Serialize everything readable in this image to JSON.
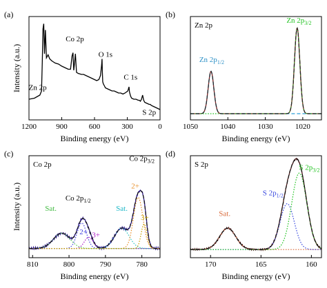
{
  "chart_data": [
    {
      "type": "line",
      "panel_label": "(a)",
      "xlabel": "Binding energy (eV)",
      "ylabel": "Intensity (a.u.)",
      "xlim": [
        1200,
        0
      ],
      "xticks": [
        1200,
        900,
        600,
        300,
        0
      ],
      "ylim": [
        0,
        10
      ],
      "series": [
        {
          "color": "#000000",
          "style": "solid",
          "x": [
            1200,
            1150,
            1100,
            1085,
            1078,
            1072,
            1065,
            1058,
            1050,
            1040,
            1025,
            1010,
            990,
            960,
            930,
            900,
            880,
            860,
            840,
            820,
            805,
            797,
            790,
            782,
            775,
            765,
            750,
            720,
            700,
            680,
            660,
            640,
            620,
            600,
            580,
            560,
            545,
            535,
            531,
            528,
            525,
            520,
            510,
            500,
            480,
            460,
            440,
            420,
            400,
            380,
            360,
            340,
            320,
            295,
            284,
            280,
            270,
            260,
            240,
            220,
            200,
            190,
            180,
            170,
            160,
            150,
            140,
            120,
            100,
            90,
            80,
            60,
            40,
            20,
            0
          ],
          "y": [
            2.0,
            2.1,
            2.4,
            2.8,
            5.6,
            8.8,
            9.3,
            6.4,
            8.7,
            6.0,
            6.3,
            5.9,
            5.7,
            5.5,
            5.4,
            5.2,
            5.1,
            5.0,
            4.9,
            4.9,
            6.2,
            6.5,
            4.8,
            5.6,
            6.4,
            4.6,
            4.5,
            4.4,
            4.4,
            4.3,
            4.2,
            4.1,
            4.0,
            3.9,
            3.8,
            3.9,
            4.3,
            5.3,
            5.9,
            4.6,
            3.7,
            3.5,
            3.3,
            3.1,
            3.0,
            2.9,
            2.8,
            2.8,
            2.7,
            2.6,
            2.6,
            2.5,
            2.6,
            2.8,
            3.2,
            2.7,
            2.3,
            2.1,
            2.0,
            2.0,
            1.9,
            1.9,
            1.8,
            2.0,
            2.4,
            1.9,
            1.7,
            1.6,
            1.5,
            1.5,
            1.4,
            1.3,
            1.2,
            1.1,
            1.0
          ]
        }
      ],
      "annotations": [
        {
          "text": "Zn 2p",
          "x": 1120,
          "y": 2.9,
          "color": "#000000"
        },
        {
          "text": "Co 2p",
          "x": 780,
          "y": 7.6,
          "color": "#000000"
        },
        {
          "text": "O 1s",
          "x": 500,
          "y": 6.1,
          "color": "#000000"
        },
        {
          "text": "C 1s",
          "x": 270,
          "y": 3.9,
          "color": "#000000"
        },
        {
          "text": "S 2p",
          "x": 100,
          "y": 0.5,
          "color": "#000000"
        }
      ]
    },
    {
      "type": "line",
      "panel_label": "(b)",
      "region_label": "Zn 2p",
      "xlabel": "Binding energy (eV)",
      "ylabel": "",
      "xlim": [
        1050,
        1015
      ],
      "xticks": [
        1050,
        1040,
        1030,
        1020
      ],
      "ylim": [
        0,
        10
      ],
      "series": [
        {
          "color": "#7a1f1f",
          "style": "solid",
          "peaks": [
            {
              "center": 1044.5,
              "sigma": 0.75,
              "height": 4.1
            },
            {
              "center": 1021.5,
              "sigma": 0.72,
              "height": 8.3
            }
          ],
          "baseline": 0.6
        },
        {
          "color": "#2a9fd6",
          "style": "dashed",
          "peaks": [
            {
              "center": 1044.5,
              "sigma": 0.75,
              "height": 4.1
            }
          ],
          "baseline": 0.6
        },
        {
          "color": "#22c322",
          "style": "dotted",
          "peaks": [
            {
              "center": 1021.5,
              "sigma": 0.72,
              "height": 8.3
            }
          ],
          "baseline": 0.6
        },
        {
          "color": "#222222",
          "style": "dashed",
          "peaks": [
            {
              "center": 1044.5,
              "sigma": 0.75,
              "height": 4.1
            },
            {
              "center": 1021.5,
              "sigma": 0.72,
              "height": 8.3
            }
          ],
          "baseline": 0.6
        }
      ],
      "annotations": [
        {
          "text": "Zn 2p",
          "sub": "1/2",
          "x": 1044.3,
          "y": 5.6,
          "color": "#2a8fc6"
        },
        {
          "text": "Zn 2p",
          "sub": "3/2",
          "x": 1021.0,
          "y": 9.4,
          "color": "#22c322"
        }
      ]
    },
    {
      "type": "line",
      "panel_label": "(c)",
      "region_label": "Co 2p",
      "xlabel": "Binding energy (eV)",
      "ylabel": "Intensity (a.u.)",
      "xlim": [
        811,
        775
      ],
      "xticks": [
        810,
        800,
        790,
        780
      ],
      "ylim": [
        0,
        10
      ],
      "series": [
        {
          "color": "#2e1a8a",
          "style": "solid",
          "peaks": [
            {
              "center": 802.0,
              "sigma": 2.3,
              "height": 1.5
            },
            {
              "center": 796.5,
              "sigma": 1.3,
              "height": 2.5
            },
            {
              "center": 794.6,
              "sigma": 1.2,
              "height": 1.1
            },
            {
              "center": 785.5,
              "sigma": 2.0,
              "height": 2.0
            },
            {
              "center": 781.0,
              "sigma": 1.3,
              "height": 5.0
            },
            {
              "center": 779.4,
              "sigma": 0.8,
              "height": 2.4
            }
          ],
          "baseline": 0.9,
          "noise": 0.12
        },
        {
          "color": "#55c855",
          "style": "dotted",
          "peaks": [
            {
              "center": 802.0,
              "sigma": 2.3,
              "height": 1.5
            }
          ],
          "baseline": 0.9
        },
        {
          "color": "#4a4adf",
          "style": "dotted",
          "peaks": [
            {
              "center": 796.5,
              "sigma": 1.3,
              "height": 2.5
            }
          ],
          "baseline": 0.9
        },
        {
          "color": "#b01ec8",
          "style": "dotted",
          "peaks": [
            {
              "center": 794.6,
              "sigma": 1.2,
              "height": 1.1
            }
          ],
          "baseline": 0.9
        },
        {
          "color": "#2ec8c8",
          "style": "dotted",
          "peaks": [
            {
              "center": 785.5,
              "sigma": 2.0,
              "height": 2.0
            }
          ],
          "baseline": 0.9
        },
        {
          "color": "#e8902a",
          "style": "dotted",
          "peaks": [
            {
              "center": 781.0,
              "sigma": 1.3,
              "height": 5.0
            }
          ],
          "baseline": 0.9
        },
        {
          "color": "#c9a000",
          "style": "dotted",
          "peaks": [
            {
              "center": 779.4,
              "sigma": 0.8,
              "height": 2.4
            }
          ],
          "baseline": 0.9
        },
        {
          "color": "#111111",
          "style": "dashed",
          "peaks": [
            {
              "center": 802.0,
              "sigma": 2.3,
              "height": 1.5
            },
            {
              "center": 796.5,
              "sigma": 1.3,
              "height": 2.5
            },
            {
              "center": 794.6,
              "sigma": 1.2,
              "height": 1.1
            },
            {
              "center": 785.5,
              "sigma": 2.0,
              "height": 2.0
            },
            {
              "center": 781.0,
              "sigma": 1.3,
              "height": 5.0
            },
            {
              "center": 779.4,
              "sigma": 0.8,
              "height": 2.4
            }
          ],
          "baseline": 0.9
        }
      ],
      "annotations": [
        {
          "text": "Co 2p",
          "sub": "3/2",
          "x": 780.0,
          "y": 9.5,
          "color": "#000000"
        },
        {
          "text": "Co 2p",
          "sub": "1/2",
          "x": 797.5,
          "y": 5.6,
          "color": "#000000"
        },
        {
          "text": "Sat.",
          "x": 805.0,
          "y": 4.6,
          "color": "#44bb44"
        },
        {
          "text": "2+",
          "x": 796.0,
          "y": 2.3,
          "color": "#3a3adf"
        },
        {
          "text": "3+",
          "x": 792.6,
          "y": 2.0,
          "color": "#b01ec8"
        },
        {
          "text": "Sat.",
          "x": 785.5,
          "y": 4.6,
          "color": "#1eb8c8"
        },
        {
          "text": "2+",
          "x": 781.8,
          "y": 6.8,
          "color": "#e8902a"
        },
        {
          "text": "3+",
          "x": 779.2,
          "y": 3.7,
          "color": "#c9a000"
        }
      ]
    },
    {
      "type": "line",
      "panel_label": "(d)",
      "region_label": "S 2p",
      "xlabel": "Binding energy (eV)",
      "ylabel": "",
      "xlim": [
        172,
        159
      ],
      "xticks": [
        170,
        165,
        160
      ],
      "ylim": [
        0,
        10
      ],
      "series": [
        {
          "color": "#4a1a1a",
          "style": "solid",
          "peaks": [
            {
              "center": 168.3,
              "sigma": 0.8,
              "height": 2.1
            },
            {
              "center": 162.4,
              "sigma": 0.7,
              "height": 4.5
            },
            {
              "center": 161.2,
              "sigma": 0.75,
              "height": 7.5
            }
          ],
          "baseline": 0.8,
          "noise": 0.08
        },
        {
          "color": "#d96a3a",
          "style": "dotted",
          "peaks": [
            {
              "center": 168.3,
              "sigma": 0.8,
              "height": 2.1
            }
          ],
          "baseline": 0.8
        },
        {
          "color": "#3a4adf",
          "style": "dotted",
          "peaks": [
            {
              "center": 162.4,
              "sigma": 0.7,
              "height": 4.5
            }
          ],
          "baseline": 0.8
        },
        {
          "color": "#22c322",
          "style": "dotted",
          "peaks": [
            {
              "center": 161.2,
              "sigma": 0.75,
              "height": 7.5
            }
          ],
          "baseline": 0.8
        },
        {
          "color": "#111111",
          "style": "dashed",
          "peaks": [
            {
              "center": 168.3,
              "sigma": 0.8,
              "height": 2.1
            },
            {
              "center": 162.4,
              "sigma": 0.7,
              "height": 4.5
            },
            {
              "center": 161.2,
              "sigma": 0.75,
              "height": 7.5
            }
          ],
          "baseline": 0.8
        }
      ],
      "annotations": [
        {
          "text": "Sat.",
          "x": 168.6,
          "y": 4.1,
          "color": "#d96a3a"
        },
        {
          "text": "S 2p",
          "sub": "1/2",
          "x": 163.8,
          "y": 6.1,
          "color": "#3a4adf"
        },
        {
          "text": "S 2p",
          "sub": "3/2",
          "x": 160.2,
          "y": 8.6,
          "color": "#22c322"
        }
      ]
    }
  ]
}
